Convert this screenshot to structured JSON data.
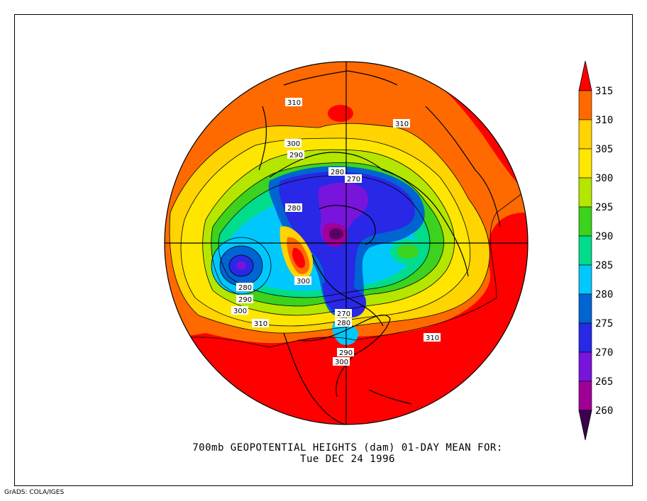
{
  "title": {
    "line1": "700mb GEOPOTENTIAL HEIGHTS (dam)   01-DAY MEAN FOR:",
    "line2": "Tue DEC 24 1996"
  },
  "credit": "GrADS: COLA/IGES",
  "colorbar": {
    "levels": [
      "315",
      "310",
      "305",
      "300",
      "295",
      "290",
      "285",
      "280",
      "275",
      "270",
      "265",
      "260"
    ],
    "colors": {
      "above_315": "#ff0000",
      "310_315": "#ff6a00",
      "305_310": "#ffd400",
      "300_305": "#ffe600",
      "295_300": "#b4e600",
      "290_295": "#3cd21e",
      "285_290": "#00dc8c",
      "280_285": "#00c8ff",
      "275_280": "#0064d2",
      "270_275": "#2828e6",
      "265_270": "#7814dc",
      "260_265": "#a00096",
      "below_260": "#3c0050"
    }
  },
  "contour_labels": [
    "310",
    "310",
    "300",
    "290",
    "280",
    "270",
    "280",
    "300",
    "280",
    "290",
    "300",
    "310",
    "270",
    "280",
    "290",
    "300",
    "310"
  ],
  "icons": {
    "map_type": "polar-stereographic-north-hemisphere"
  }
}
